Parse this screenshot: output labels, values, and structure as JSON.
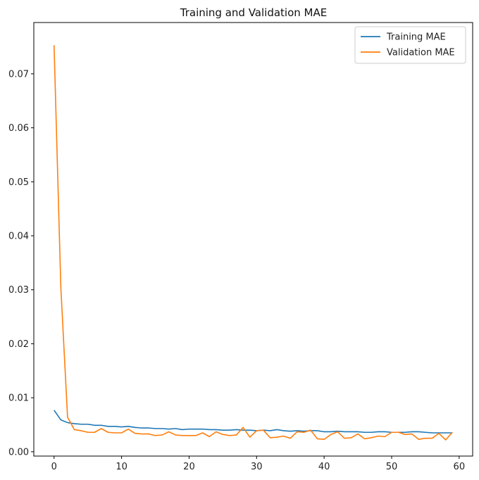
{
  "chart_data": {
    "type": "line",
    "title": "Training and Validation MAE",
    "xlabel": "",
    "ylabel": "",
    "xlim": [
      -3,
      62
    ],
    "ylim": [
      -0.0008,
      0.0795
    ],
    "xticks": [
      0,
      10,
      20,
      30,
      40,
      50,
      60
    ],
    "xtick_labels": [
      "0",
      "10",
      "20",
      "30",
      "40",
      "50",
      "60"
    ],
    "yticks": [
      0.0,
      0.01,
      0.02,
      0.03,
      0.04,
      0.05,
      0.06,
      0.07
    ],
    "ytick_labels": [
      "0.00",
      "0.01",
      "0.02",
      "0.03",
      "0.04",
      "0.05",
      "0.06",
      "0.07"
    ],
    "grid": false,
    "legend_position": "top-right",
    "x": [
      0,
      1,
      2,
      3,
      4,
      5,
      6,
      7,
      8,
      9,
      10,
      11,
      12,
      13,
      14,
      15,
      16,
      17,
      18,
      19,
      20,
      21,
      22,
      23,
      24,
      25,
      26,
      27,
      28,
      29,
      30,
      31,
      32,
      33,
      34,
      35,
      36,
      37,
      38,
      39,
      40,
      41,
      42,
      43,
      44,
      45,
      46,
      47,
      48,
      49,
      50,
      51,
      52,
      53,
      54,
      55,
      56,
      57,
      58,
      59
    ],
    "series": [
      {
        "name": "Training MAE",
        "color": "#1f77b4",
        "values": [
          0.0077,
          0.0059,
          0.0054,
          0.0052,
          0.0051,
          0.0051,
          0.0049,
          0.0049,
          0.0047,
          0.0047,
          0.0046,
          0.0047,
          0.0045,
          0.0044,
          0.0044,
          0.0043,
          0.0043,
          0.0042,
          0.0043,
          0.0041,
          0.0042,
          0.0042,
          0.0042,
          0.0041,
          0.0041,
          0.004,
          0.004,
          0.0041,
          0.004,
          0.004,
          0.0039,
          0.004,
          0.0039,
          0.0041,
          0.0039,
          0.0038,
          0.0039,
          0.0038,
          0.0039,
          0.0039,
          0.0037,
          0.0037,
          0.0038,
          0.0037,
          0.0037,
          0.0037,
          0.0036,
          0.0036,
          0.0037,
          0.0037,
          0.0036,
          0.0036,
          0.0036,
          0.0037,
          0.0037,
          0.0036,
          0.0035,
          0.0035,
          0.0035,
          0.0035
        ]
      },
      {
        "name": "Validation MAE",
        "color": "#ff7f0e",
        "values": [
          0.0753,
          0.0305,
          0.0064,
          0.0041,
          0.0039,
          0.0036,
          0.0036,
          0.0043,
          0.0036,
          0.0035,
          0.0035,
          0.0042,
          0.0034,
          0.0033,
          0.0033,
          0.003,
          0.0031,
          0.0037,
          0.0031,
          0.003,
          0.003,
          0.003,
          0.0035,
          0.0028,
          0.0037,
          0.0032,
          0.003,
          0.0031,
          0.0045,
          0.0027,
          0.0039,
          0.004,
          0.0026,
          0.0027,
          0.0029,
          0.0025,
          0.0037,
          0.0036,
          0.004,
          0.0024,
          0.0023,
          0.0032,
          0.0037,
          0.0025,
          0.0026,
          0.0033,
          0.0024,
          0.0026,
          0.0029,
          0.0028,
          0.0036,
          0.0036,
          0.0032,
          0.0033,
          0.0023,
          0.0025,
          0.0025,
          0.0034,
          0.0022,
          0.0036
        ]
      }
    ]
  }
}
